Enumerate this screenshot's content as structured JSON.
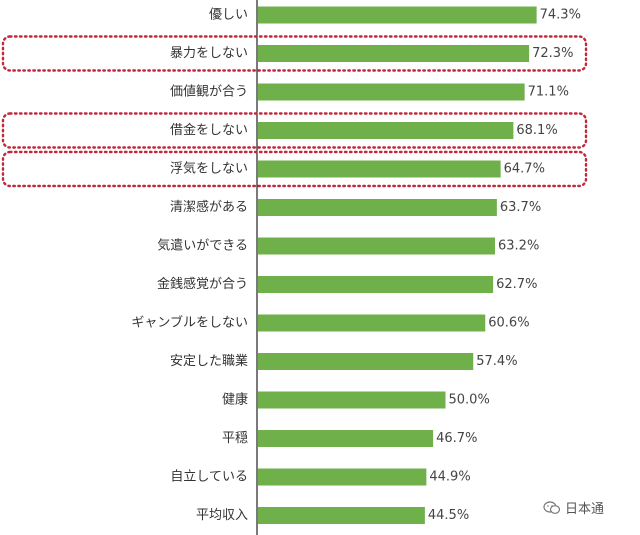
{
  "chart_data": {
    "type": "bar",
    "orientation": "horizontal",
    "categories": [
      "優しい",
      "暴力をしない",
      "価値観が合う",
      "借金をしない",
      "浮気をしない",
      "清潔感がある",
      "気遣いができる",
      "金銭感覚が合う",
      "ギャンブルをしない",
      "安定した職業",
      "健康",
      "平穏",
      "自立している",
      "平均収入"
    ],
    "values": [
      74.3,
      72.3,
      71.1,
      68.1,
      64.7,
      63.7,
      63.2,
      62.7,
      60.6,
      57.4,
      50.0,
      46.7,
      44.9,
      44.5
    ],
    "value_labels": [
      "74.3%",
      "72.3%",
      "71.1%",
      "68.1%",
      "64.7%",
      "63.7%",
      "63.2%",
      "62.7%",
      "60.6%",
      "57.4%",
      "50.0%",
      "46.7%",
      "44.9%",
      "44.5%"
    ],
    "highlighted_categories": [
      "暴力をしない",
      "借金をしない",
      "浮気をしない"
    ],
    "xlim": [
      0,
      100
    ],
    "grid": false,
    "legend": "none",
    "colors": {
      "bar": "#6fb04a",
      "highlight_border": "#c0283c",
      "axis_line": "#222222"
    }
  },
  "watermark": {
    "text": "日本通",
    "icon": "wechat-icon"
  }
}
